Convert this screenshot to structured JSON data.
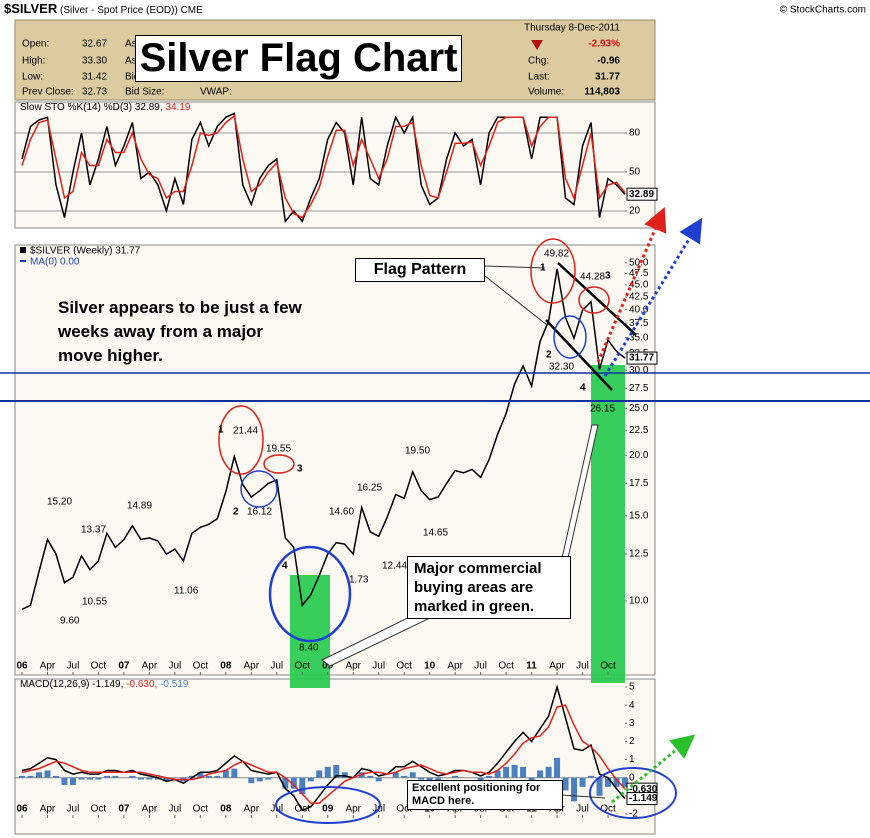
{
  "header": {
    "symbol": "$SILVER",
    "description": "(Silver - Spot Price (EOD))",
    "exchange": "CME",
    "copyright": "© StockCharts.com",
    "date": "Thursday  8-Dec-2011",
    "left_fields": [
      {
        "label": "Open:",
        "value": "32.67"
      },
      {
        "label": "High:",
        "value": "33.30"
      },
      {
        "label": "Low:",
        "value": "31.42"
      },
      {
        "label": "Prev Close:",
        "value": "32.73"
      }
    ],
    "mid_fields": [
      "As",
      "As",
      "Bid",
      "Bid Size:",
      "VWAP:"
    ],
    "change_pct": "-2.93%",
    "right_fields": [
      {
        "label": "Chg:",
        "value": "-0.96"
      },
      {
        "label": "Last:",
        "value": "31.77"
      },
      {
        "label": "Volume:",
        "value": "114,803"
      }
    ]
  },
  "annotations": {
    "title_box": "Silver Flag Chart",
    "flag": "Flag Pattern",
    "note": "Silver appears to be just a few weeks away from a major move higher.",
    "green_note": "Major commercial buying areas are marked in green.",
    "macd_note": "Excellent positioning for MACD here.",
    "points": [
      "1",
      "21.44",
      "2",
      "16.12",
      "19.55",
      "3",
      "4",
      "8.40",
      "15.20",
      "13.37",
      "9.60",
      "10.55",
      "14.89",
      "11.06",
      "14.60",
      "1.73",
      "16.25",
      "12.44",
      "19.50",
      "14.65",
      "49.82",
      "44.28",
      "3",
      "1",
      "2",
      "32.30",
      "4",
      "26.15"
    ]
  },
  "chart_data": [
    {
      "type": "line",
      "legend": [
        "Slow STO %K(14) %D(3) 32.89,",
        "34.19"
      ],
      "x": [
        "2006-01",
        "2006-02",
        "2006-03",
        "2006-04",
        "2006-05",
        "2006-06",
        "2006-07",
        "2006-08",
        "2006-09",
        "2006-10",
        "2006-11",
        "2006-12",
        "2007-01",
        "2007-02",
        "2007-03",
        "2007-04",
        "2007-05",
        "2007-06",
        "2007-07",
        "2007-08",
        "2007-09",
        "2007-10",
        "2007-11",
        "2007-12",
        "2008-01",
        "2008-02",
        "2008-03",
        "2008-04",
        "2008-05",
        "2008-06",
        "2008-07",
        "2008-08",
        "2008-09",
        "2008-10",
        "2008-11",
        "2008-12",
        "2009-01",
        "2009-02",
        "2009-03",
        "2009-04",
        "2009-05",
        "2009-06",
        "2009-07",
        "2009-08",
        "2009-09",
        "2009-10",
        "2009-11",
        "2009-12",
        "2010-01",
        "2010-02",
        "2010-03",
        "2010-04",
        "2010-05",
        "2010-06",
        "2010-07",
        "2010-08",
        "2010-09",
        "2010-10",
        "2010-11",
        "2010-12",
        "2011-01",
        "2011-02",
        "2011-03",
        "2011-04",
        "2011-05",
        "2011-06",
        "2011-07",
        "2011-08",
        "2011-09",
        "2011-10",
        "2011-11",
        "2011-12"
      ],
      "xlim": [
        "2006-01",
        "2011-12"
      ],
      "ylim": [
        6.9,
        103.8
      ],
      "yticks": [
        20,
        50,
        80
      ],
      "grid": true,
      "series": [
        {
          "color": "#000000",
          "values": [
            60,
            85,
            90,
            92,
            40,
            15,
            50,
            80,
            40,
            60,
            85,
            55,
            70,
            88,
            45,
            50,
            40,
            20,
            45,
            25,
            75,
            88,
            70,
            85,
            92,
            95,
            40,
            25,
            45,
            55,
            60,
            12,
            20,
            12,
            30,
            45,
            75,
            88,
            80,
            40,
            92,
            45,
            40,
            70,
            92,
            80,
            92,
            40,
            25,
            30,
            60,
            80,
            70,
            75,
            40,
            80,
            92,
            92,
            92,
            92,
            60,
            92,
            92,
            92,
            30,
            25,
            70,
            88,
            15,
            45,
            40,
            32.89
          ]
        },
        {
          "color": "#e0201b",
          "values": [
            55,
            75,
            88,
            90,
            60,
            30,
            35,
            65,
            55,
            55,
            75,
            65,
            65,
            80,
            60,
            48,
            45,
            30,
            35,
            35,
            55,
            80,
            78,
            80,
            88,
            93,
            60,
            35,
            40,
            50,
            57,
            30,
            18,
            15,
            25,
            38,
            62,
            82,
            82,
            55,
            75,
            60,
            45,
            60,
            85,
            85,
            88,
            55,
            32,
            30,
            50,
            72,
            72,
            73,
            55,
            70,
            88,
            92,
            92,
            92,
            70,
            85,
            92,
            92,
            45,
            30,
            55,
            80,
            30,
            40,
            42,
            34.19
          ]
        }
      ],
      "end_labels": [
        "32.89"
      ]
    },
    {
      "type": "line",
      "log_scale": true,
      "legend": [
        "$SILVER (Weekly) 31.77",
        "MA(0) 0.00"
      ],
      "x": [
        "2006-01",
        "2006-02",
        "2006-03",
        "2006-04",
        "2006-05",
        "2006-06",
        "2006-07",
        "2006-08",
        "2006-09",
        "2006-10",
        "2006-11",
        "2006-12",
        "2007-01",
        "2007-02",
        "2007-03",
        "2007-04",
        "2007-05",
        "2007-06",
        "2007-07",
        "2007-08",
        "2007-09",
        "2007-10",
        "2007-11",
        "2007-12",
        "2008-01",
        "2008-02",
        "2008-03",
        "2008-04",
        "2008-05",
        "2008-06",
        "2008-07",
        "2008-08",
        "2008-09",
        "2008-10",
        "2008-11",
        "2008-12",
        "2009-01",
        "2009-02",
        "2009-03",
        "2009-04",
        "2009-05",
        "2009-06",
        "2009-07",
        "2009-08",
        "2009-09",
        "2009-10",
        "2009-11",
        "2009-12",
        "2010-01",
        "2010-02",
        "2010-03",
        "2010-04",
        "2010-05",
        "2010-06",
        "2010-07",
        "2010-08",
        "2010-09",
        "2010-10",
        "2010-11",
        "2010-12",
        "2011-01",
        "2011-02",
        "2011-03",
        "2011-04",
        "2011-05",
        "2011-06",
        "2011-07",
        "2011-08",
        "2011-09",
        "2011-10",
        "2011-11",
        "2011-12"
      ],
      "xlim": [
        "2006-01",
        "2011-12"
      ],
      "xticks": [
        {
          "value": "2006-01",
          "label": "06"
        },
        {
          "value": "2006-04",
          "label": "Apr"
        },
        {
          "value": "2006-07",
          "label": "Jul"
        },
        {
          "value": "2006-10",
          "label": "Oct"
        },
        {
          "value": "2007-01",
          "label": "07"
        },
        {
          "value": "2007-04",
          "label": "Apr"
        },
        {
          "value": "2007-07",
          "label": "Jul"
        },
        {
          "value": "2007-10",
          "label": "Oct"
        },
        {
          "value": "2008-01",
          "label": "08"
        },
        {
          "value": "2008-04",
          "label": "Apr"
        },
        {
          "value": "2008-07",
          "label": "Jul"
        },
        {
          "value": "2008-10",
          "label": "Oct"
        },
        {
          "value": "2009-01",
          "label": "09"
        },
        {
          "value": "2009-04",
          "label": "Apr"
        },
        {
          "value": "2009-07",
          "label": "Jul"
        },
        {
          "value": "2009-10",
          "label": "Oct"
        },
        {
          "value": "2010-01",
          "label": "10"
        },
        {
          "value": "2010-04",
          "label": "Apr"
        },
        {
          "value": "2010-07",
          "label": "Jul"
        },
        {
          "value": "2010-10",
          "label": "Oct"
        },
        {
          "value": "2011-01",
          "label": "11"
        },
        {
          "value": "2011-04",
          "label": "Apr"
        },
        {
          "value": "2011-07",
          "label": "Jul"
        },
        {
          "value": "2011-10",
          "label": "Oct"
        }
      ],
      "ylim": [
        7.03,
        53.9
      ],
      "yticks": [
        {
          "value": 50,
          "label": "50.0"
        },
        {
          "value": 47.5,
          "label": "47.5"
        },
        {
          "value": 45,
          "label": "45.0"
        },
        {
          "value": 42.5,
          "label": "42.5"
        },
        {
          "value": 40,
          "label": "40.0"
        },
        {
          "value": 37.5,
          "label": "37.5"
        },
        {
          "value": 35,
          "label": "35.0"
        },
        {
          "value": 32.5,
          "label": "32.5"
        },
        {
          "value": 30,
          "label": "30.0"
        },
        {
          "value": 27.5,
          "label": "27.5"
        },
        {
          "value": 25,
          "label": "25.0"
        },
        {
          "value": 22.5,
          "label": "22.5"
        },
        {
          "value": 20,
          "label": "20.0"
        },
        {
          "value": 17.5,
          "label": "17.5"
        },
        {
          "value": 15,
          "label": "15.0"
        },
        {
          "value": 12.5,
          "label": "12.5"
        },
        {
          "value": 10,
          "label": "10.0"
        }
      ],
      "grid": false,
      "series": [
        {
          "color": "#000000",
          "values": [
            9.6,
            9.8,
            11.5,
            13.4,
            12.5,
            10.9,
            11.2,
            12.4,
            11.6,
            12.1,
            13.8,
            12.9,
            13.4,
            14.3,
            13.4,
            13.5,
            13.3,
            12.5,
            12.8,
            12.1,
            13.8,
            14.2,
            14.4,
            14.8,
            16.8,
            19.9,
            17.4,
            16.4,
            16.9,
            17.5,
            17.8,
            13.5,
            12.9,
            9.8,
            10.3,
            11.3,
            12.5,
            13.2,
            13.1,
            12.5,
            15.6,
            13.9,
            13.6,
            14.9,
            16.6,
            16.3,
            18.5,
            16.9,
            16.2,
            16.4,
            17.5,
            18.6,
            18.4,
            18.7,
            18.0,
            19.6,
            22.1,
            24.4,
            28.1,
            30.6,
            27.8,
            34.4,
            37.9,
            48.6,
            38.5,
            34.9,
            39.9,
            41.5,
            30.1,
            34.6,
            32.8,
            31.77
          ]
        }
      ],
      "end_labels": [
        "31.77"
      ]
    },
    {
      "type": "line",
      "legend": [
        "MACD(12,26,9) -1.149,",
        "-0.630,",
        "-0.519"
      ],
      "x": [
        "2006-01",
        "2006-02",
        "2006-03",
        "2006-04",
        "2006-05",
        "2006-06",
        "2006-07",
        "2006-08",
        "2006-09",
        "2006-10",
        "2006-11",
        "2006-12",
        "2007-01",
        "2007-02",
        "2007-03",
        "2007-04",
        "2007-05",
        "2007-06",
        "2007-07",
        "2007-08",
        "2007-09",
        "2007-10",
        "2007-11",
        "2007-12",
        "2008-01",
        "2008-02",
        "2008-03",
        "2008-04",
        "2008-05",
        "2008-06",
        "2008-07",
        "2008-08",
        "2008-09",
        "2008-10",
        "2008-11",
        "2008-12",
        "2009-01",
        "2009-02",
        "2009-03",
        "2009-04",
        "2009-05",
        "2009-06",
        "2009-07",
        "2009-08",
        "2009-09",
        "2009-10",
        "2009-11",
        "2009-12",
        "2010-01",
        "2010-02",
        "2010-03",
        "2010-04",
        "2010-05",
        "2010-06",
        "2010-07",
        "2010-08",
        "2010-09",
        "2010-10",
        "2010-11",
        "2010-12",
        "2011-01",
        "2011-02",
        "2011-03",
        "2011-04",
        "2011-05",
        "2011-06",
        "2011-07",
        "2011-08",
        "2011-09",
        "2011-10",
        "2011-11",
        "2011-12"
      ],
      "xlim": [
        "2006-01",
        "2011-12"
      ],
      "xticks": [
        {
          "value": "2006-01",
          "label": "06"
        },
        {
          "value": "2006-04",
          "label": "Apr"
        },
        {
          "value": "2006-07",
          "label": "Jul"
        },
        {
          "value": "2006-10",
          "label": "Oct"
        },
        {
          "value": "2007-01",
          "label": "07"
        },
        {
          "value": "2007-04",
          "label": "Apr"
        },
        {
          "value": "2007-07",
          "label": "Jul"
        },
        {
          "value": "2007-10",
          "label": "Oct"
        },
        {
          "value": "2008-01",
          "label": "08"
        },
        {
          "value": "2008-04",
          "label": "Apr"
        },
        {
          "value": "2008-07",
          "label": "Jul"
        },
        {
          "value": "2008-10",
          "label": "Oct"
        },
        {
          "value": "2009-01",
          "label": "09"
        },
        {
          "value": "2009-04",
          "label": "Apr"
        },
        {
          "value": "2009-07",
          "label": "Jul"
        },
        {
          "value": "2009-10",
          "label": "Oct"
        },
        {
          "value": "2010-01",
          "label": "10"
        },
        {
          "value": "2010-04",
          "label": "Apr"
        },
        {
          "value": "2010-07",
          "label": "Jul"
        },
        {
          "value": "2010-10",
          "label": "Oct"
        },
        {
          "value": "2011-01",
          "label": "11"
        },
        {
          "value": "2011-04",
          "label": "Apr"
        },
        {
          "value": "2011-07",
          "label": "Jul"
        },
        {
          "value": "2011-10",
          "label": "Oct"
        }
      ],
      "ylim": [
        -2.22,
        5.22
      ],
      "yticks": [
        -2,
        -1,
        0,
        1,
        2,
        3,
        4,
        5
      ],
      "grid": false,
      "series": [
        {
          "type": "bar",
          "color": "#4a7fc0",
          "values": [
            0.1,
            0.1,
            0.3,
            0.4,
            0.1,
            -0.4,
            -0.4,
            -0.1,
            -0.1,
            -0.1,
            0.1,
            0.1,
            0,
            0.1,
            -0.1,
            -0.1,
            -0.1,
            -0.2,
            0,
            -0.2,
            0.1,
            0.3,
            0.1,
            0.1,
            0.4,
            0.5,
            0,
            -0.3,
            -0.2,
            -0.1,
            0,
            -0.6,
            -0.6,
            -0.9,
            -0.2,
            0.4,
            0.6,
            0.7,
            0.3,
            0,
            0.3,
            0.1,
            -0.2,
            0,
            0.3,
            0.1,
            0.3,
            -0.1,
            -0.2,
            -0.2,
            0,
            0.1,
            0,
            0,
            -0.2,
            0.1,
            0.4,
            0.6,
            0.7,
            0.6,
            -0.2,
            0.4,
            0.6,
            1.1,
            -0.7,
            -1.3,
            -0.5,
            0.1,
            -1.0,
            -0.5,
            -0.5,
            -0.519
          ]
        },
        {
          "color": "#000000",
          "values": [
            0.4,
            0.5,
            0.8,
            1.1,
            1.0,
            0.4,
            0.2,
            0.3,
            0.2,
            0.2,
            0.4,
            0.4,
            0.3,
            0.4,
            0.2,
            0.1,
            0.0,
            -0.2,
            -0.1,
            -0.3,
            0.0,
            0.3,
            0.3,
            0.4,
            0.8,
            1.2,
            0.9,
            0.4,
            0.3,
            0.2,
            0.3,
            -0.6,
            -1.0,
            -1.8,
            -1.6,
            -1.0,
            -0.4,
            0.1,
            0.1,
            0.0,
            0.5,
            0.4,
            0.1,
            0.2,
            0.6,
            0.6,
            0.9,
            0.6,
            0.3,
            0.1,
            0.2,
            0.4,
            0.4,
            0.3,
            0.1,
            0.3,
            0.8,
            1.4,
            2.0,
            2.5,
            2.0,
            2.7,
            3.4,
            5.0,
            3.3,
            1.6,
            1.5,
            1.8,
            0.2,
            0.0,
            -0.6,
            -1.149
          ]
        },
        {
          "color": "#e0201b",
          "values": [
            0.3,
            0.4,
            0.5,
            0.7,
            0.9,
            0.8,
            0.6,
            0.4,
            0.3,
            0.3,
            0.3,
            0.3,
            0.3,
            0.3,
            0.3,
            0.2,
            0.1,
            0.0,
            -0.1,
            -0.1,
            -0.1,
            0.0,
            0.2,
            0.3,
            0.4,
            0.7,
            0.9,
            0.7,
            0.5,
            0.3,
            0.3,
            0.0,
            -0.4,
            -0.9,
            -1.4,
            -1.4,
            -1.0,
            -0.6,
            -0.2,
            0.0,
            0.2,
            0.3,
            0.3,
            0.2,
            0.3,
            0.5,
            0.6,
            0.7,
            0.5,
            0.3,
            0.2,
            0.3,
            0.4,
            0.3,
            0.3,
            0.2,
            0.4,
            0.8,
            1.3,
            1.9,
            2.2,
            2.3,
            2.8,
            3.9,
            4.0,
            2.9,
            2.0,
            1.7,
            1.2,
            0.5,
            -0.1,
            -0.63
          ]
        }
      ],
      "end_labels": [
        "-0.630",
        "-1.149"
      ]
    }
  ]
}
